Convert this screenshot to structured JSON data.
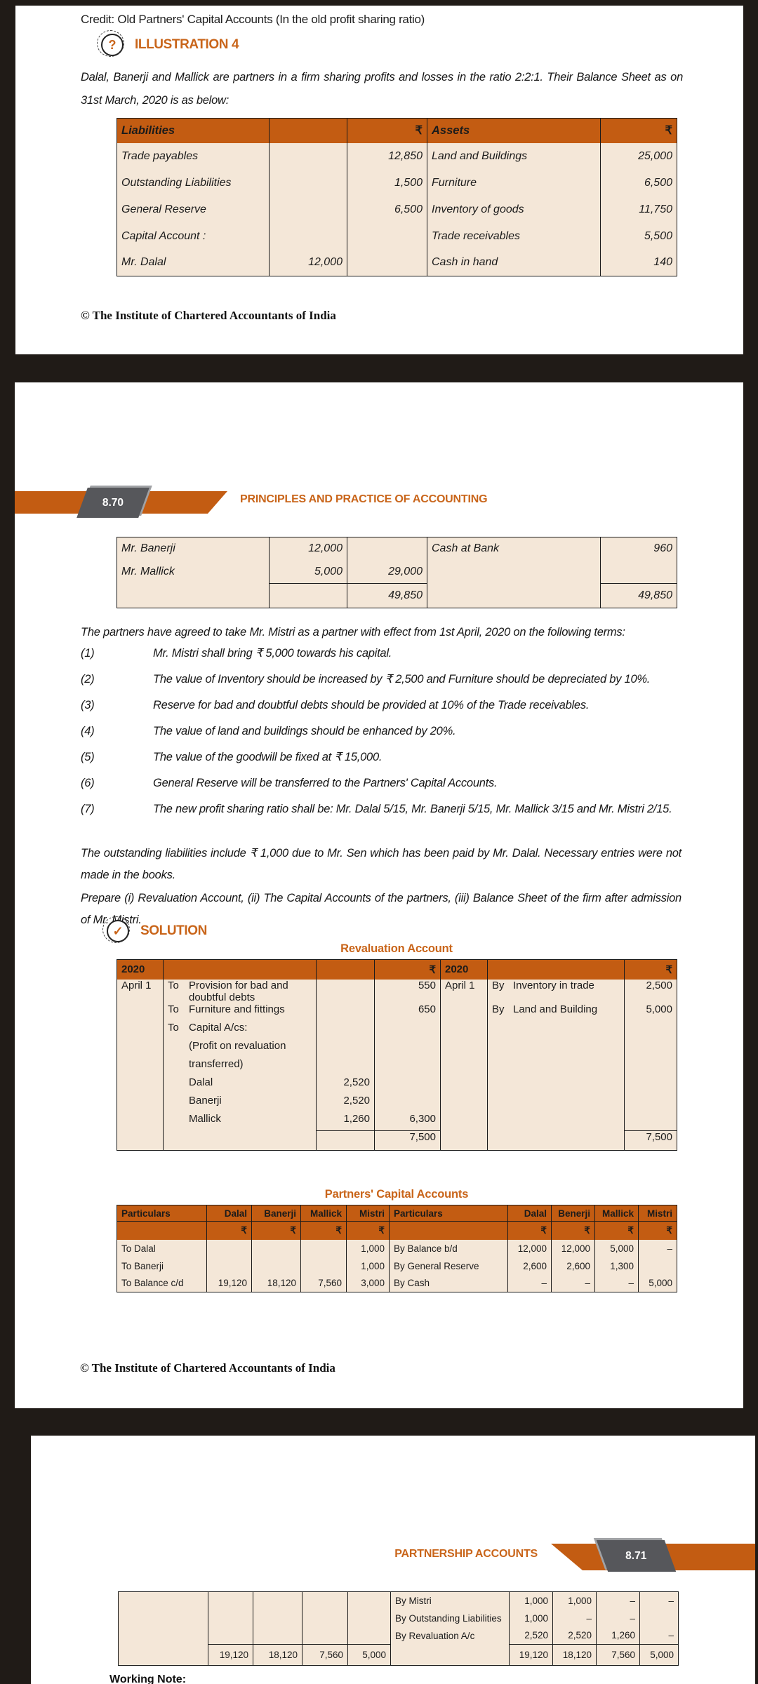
{
  "page1": {
    "credit_line": "Credit: Old Partners' Capital Accounts (In the old profit sharing ratio)",
    "illustration": {
      "icon_glyph": "?",
      "label": "ILLUSTRATION 4"
    },
    "intro": "Dalal, Banerji and Mallick are partners in a firm sharing profits and losses in the ratio 2:2:1. Their Balance Sheet as on 31st March, 2020 is as below:",
    "balance_sheet": {
      "headers": [
        "Liabilities",
        "",
        "₹",
        "Assets",
        "₹"
      ],
      "rows": [
        [
          "Trade payables",
          "",
          "12,850",
          "Land and Buildings",
          "25,000"
        ],
        [
          "Outstanding Liabilities",
          "",
          "1,500",
          "Furniture",
          "6,500"
        ],
        [
          "General Reserve",
          "",
          "6,500",
          "Inventory of goods",
          "11,750"
        ],
        [
          "Capital Account :",
          "",
          "",
          "Trade receivables",
          "5,500"
        ],
        [
          "Mr. Dalal",
          "12,000",
          "",
          "Cash in hand",
          "140"
        ]
      ]
    },
    "copyright": "© The Institute of Chartered Accountants of India"
  },
  "page2": {
    "page_number": "8.70",
    "header_title": "PRINCIPLES AND PRACTICE OF ACCOUNTING",
    "balance_sheet_cont": {
      "rows": [
        [
          "Mr. Banerji",
          "12,000",
          "",
          "Cash at Bank",
          "960"
        ],
        [
          "Mr. Mallick",
          "5,000",
          "29,000",
          "",
          ""
        ],
        {
          "cls": "totals",
          "cells": [
            "",
            "",
            "49,850",
            "",
            "49,850"
          ]
        }
      ]
    },
    "para_terms": "The partners have agreed to take Mr. Mistri as a partner with effect from 1st April, 2020 on the following terms:",
    "terms": [
      {
        "num": "(1)",
        "text": "Mr. Mistri shall bring ₹ 5,000 towards his capital."
      },
      {
        "num": "(2)",
        "text": "The value of Inventory should be increased by ₹ 2,500 and Furniture should be depreciated by 10%."
      },
      {
        "num": "(3)",
        "text": "Reserve for bad and doubtful debts should be provided at 10% of the Trade receivables."
      },
      {
        "num": "(4)",
        "text": "The value of land and buildings should be enhanced by 20%."
      },
      {
        "num": "(5)",
        "text": "The value of the goodwill be fixed at ₹ 15,000."
      },
      {
        "num": "(6)",
        "text": "General Reserve will be transferred to the Partners' Capital Accounts."
      },
      {
        "num": "(7)",
        "text": "The new profit sharing ratio shall be: Mr. Dalal 5/15, Mr. Banerji 5/15, Mr. Mallick 3/15 and Mr. Mistri 2/15."
      }
    ],
    "para_liabilities": "The outstanding liabilities include ₹ 1,000 due to Mr. Sen which has been paid by Mr. Dalal. Necessary entries were not made in the books.",
    "para_prepare": "Prepare (i) Revaluation Account, (ii) The Capital Accounts of the partners, (iii) Balance Sheet of the firm after admission of Mr. Mistri.",
    "solution": {
      "icon_glyph": "✓",
      "label": "SOLUTION"
    },
    "revaluation": {
      "title": "Revaluation Account",
      "headers": [
        "2020",
        "",
        "",
        "₹",
        "2020",
        "",
        "₹"
      ],
      "rows": [
        [
          "April 1",
          {
            "pre": "To",
            "text": "Provision for bad  and\ndoubtful debts"
          },
          "",
          "550",
          "April 1",
          {
            "pre": "By",
            "text": "Inventory in trade"
          },
          "2,500"
        ],
        [
          "",
          {
            "pre": "To",
            "text": "Furniture and fittings"
          },
          "",
          "650",
          "",
          {
            "pre": "By",
            "text": "Land and Building"
          },
          "5,000"
        ],
        [
          "",
          {
            "pre": "To",
            "text": "Capital A/cs:"
          },
          "",
          "",
          "",
          "",
          ""
        ],
        [
          "",
          {
            "pre": "",
            "text": "(Profit on revaluation"
          },
          "",
          "",
          "",
          "",
          ""
        ],
        [
          "",
          {
            "pre": "",
            "text": "transferred)"
          },
          "",
          "",
          "",
          "",
          ""
        ],
        [
          "",
          {
            "pre": "",
            "text": "Dalal"
          },
          "2,520",
          "",
          "",
          "",
          ""
        ],
        [
          "",
          {
            "pre": "",
            "text": "Banerji"
          },
          "2,520",
          "",
          "",
          "",
          ""
        ],
        [
          "",
          {
            "pre": "",
            "text": "Mallick"
          },
          "1,260",
          "6,300",
          "",
          "",
          ""
        ],
        {
          "cls": "totals",
          "cells": [
            "",
            "",
            "",
            "7,500",
            "",
            "",
            "7,500"
          ]
        }
      ]
    },
    "capital_accounts": {
      "title": "Partners' Capital Accounts",
      "headers1": [
        "Particulars",
        "Dalal",
        "Banerji",
        "Mallick",
        "Mistri",
        "Particulars",
        "Dalal",
        "Benerji",
        "Mallick",
        "Mistri"
      ],
      "headers2": [
        "",
        "₹",
        "₹",
        "₹",
        "₹",
        "",
        "₹",
        "₹",
        "₹",
        "₹"
      ],
      "rows": [
        [
          "To Dalal",
          "",
          "",
          "",
          "1,000",
          "By Balance b/d",
          "12,000",
          "12,000",
          "5,000",
          "–"
        ],
        [
          "To Banerji",
          "",
          "",
          "",
          "1,000",
          "By General Reserve",
          "2,600",
          "2,600",
          "1,300",
          ""
        ],
        [
          "To Balance c/d",
          "19,120",
          "18,120",
          "7,560",
          "3,000",
          "By Cash",
          "–",
          "–",
          "–",
          "5,000"
        ]
      ]
    },
    "copyright": "© The Institute of Chartered Accountants of India"
  },
  "page3": {
    "header_title": "PARTNERSHIP ACCOUNTS",
    "page_number": "8.71",
    "capital_accounts_cont": {
      "rows": [
        [
          "",
          "",
          "",
          "",
          "",
          "By Mistri",
          "1,000",
          "1,000",
          "–",
          "–"
        ],
        [
          "",
          "",
          "",
          "",
          "",
          "By Outstanding Liabilities",
          "1,000",
          "–",
          "–",
          ""
        ],
        [
          "",
          "",
          "",
          "",
          "",
          "By Revaluation A/c",
          "2,520",
          "2,520",
          "1,260",
          "–"
        ],
        {
          "cls": "totals",
          "cells": [
            "",
            "19,120",
            "18,120",
            "7,560",
            "5,000",
            "",
            "19,120",
            "18,120",
            "7,560",
            "5,000"
          ]
        }
      ]
    },
    "working_note": "Working Note:"
  }
}
